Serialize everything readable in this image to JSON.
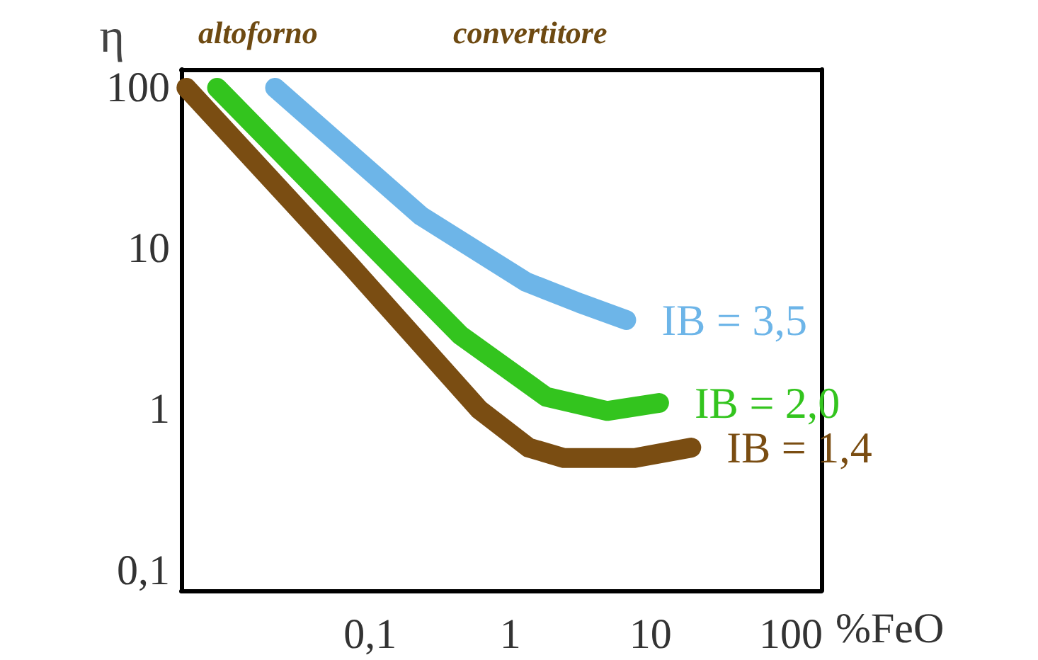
{
  "chart_data": {
    "type": "line",
    "xlabel": "%FeO",
    "ylabel": "η",
    "log": "xy",
    "grid": false,
    "legend": false,
    "line_style": "solid",
    "xlim": [
      0.0045,
      165
    ],
    "ylim": [
      0.075,
      130
    ],
    "xticks": [
      {
        "value": 0.1,
        "label": "0,1"
      },
      1,
      10,
      100
    ],
    "yticks": [
      {
        "value": 0.1,
        "label": "0,1"
      },
      1,
      10,
      100
    ],
    "annotations": [
      "altoforno",
      "convertitore"
    ],
    "series": [
      {
        "name": "IB = 3,5",
        "color": "#6db5e8",
        "x": [
          0.021,
          0.23,
          1.3,
          3.1,
          6.7
        ],
        "values": [
          100,
          16,
          6.2,
          4.6,
          3.6
        ]
      },
      {
        "name": "IB = 2,0",
        "color": "#33c41e",
        "x": [
          0.0081,
          0.074,
          0.44,
          1.8,
          4.9,
          11.5
        ],
        "values": [
          100,
          14,
          2.9,
          1.2,
          0.98,
          1.1
        ]
      },
      {
        "name": "IB = 1,4",
        "color": "#7a4d12",
        "x": [
          0.0049,
          0.074,
          0.6,
          1.35,
          2.4,
          7.7,
          19.5
        ],
        "values": [
          100,
          7.7,
          1.0,
          0.58,
          0.5,
          0.5,
          0.58
        ]
      }
    ]
  }
}
